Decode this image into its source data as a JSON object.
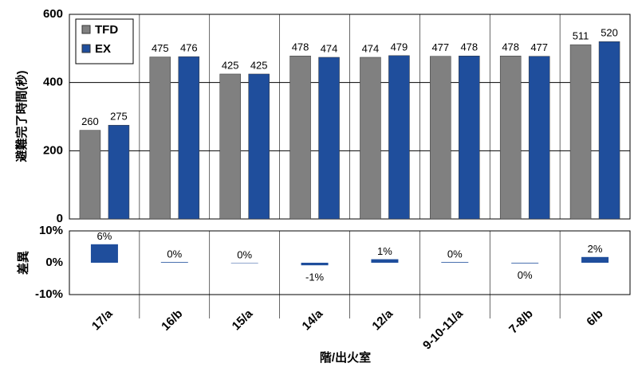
{
  "chart_data": [
    {
      "type": "bar",
      "ylabel": "避難完了時間(秒)",
      "series": [
        {
          "name": "TFD",
          "color": "#808080",
          "values": [
            260,
            475,
            425,
            478,
            474,
            477,
            478,
            511
          ]
        },
        {
          "name": "EX",
          "color": "#1f4e9c",
          "values": [
            275,
            476,
            425,
            474,
            479,
            478,
            477,
            520
          ]
        }
      ],
      "ylim": [
        0,
        600
      ],
      "yticks": [
        0,
        200,
        400,
        600
      ],
      "grid": true,
      "legend": "top-left"
    },
    {
      "type": "bar",
      "ylabel": "差異",
      "xlabel": "階/出火室",
      "categories": [
        "17/a",
        "16/b",
        "15/a",
        "14/a",
        "12/a",
        "9-10-11/a",
        "7-8/b",
        "6/b"
      ],
      "values": [
        5.8,
        0.2,
        0,
        -0.8,
        1.1,
        0.2,
        -0.2,
        1.8
      ],
      "value_labels": [
        "6%",
        "0%",
        "0%",
        "-1%",
        "1%",
        "0%",
        "0%",
        "2%"
      ],
      "color": "#1f4e9c",
      "ylim": [
        -10,
        10
      ],
      "yticks": [
        {
          "value": 10,
          "label": "10%"
        },
        {
          "value": 0,
          "label": "0%"
        },
        {
          "value": -10,
          "label": "-10%"
        }
      ]
    }
  ]
}
